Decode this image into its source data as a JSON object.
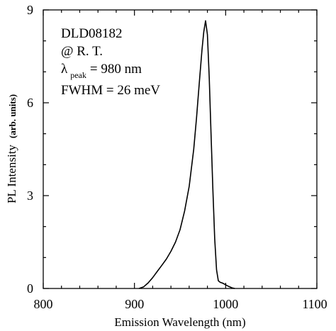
{
  "chart_data": {
    "type": "line",
    "title": "",
    "xlabel": "Emission Wavelength (nm)",
    "ylabel": "PL Intensity",
    "ylabel_units": "(arb. units)",
    "xlim": [
      800,
      1100
    ],
    "ylim": [
      0,
      9
    ],
    "x_ticks": [
      "800",
      "900",
      "1000",
      "1100"
    ],
    "y_ticks": [
      "0",
      "3",
      "6",
      "9"
    ],
    "grid": false,
    "annotations": {
      "sample": "DLD08182",
      "condition": "@ R. T.",
      "lambda_symbol": "λ",
      "peak_sub": "peak",
      "peak_value": "= 980 nm",
      "fwhm": "FWHM = 26 meV"
    },
    "series": [
      {
        "x": [
          905,
          910,
          915,
          920,
          925,
          930,
          935,
          940,
          945,
          950,
          955,
          960,
          965,
          968,
          971,
          974,
          976,
          978,
          980,
          982,
          984,
          986,
          988,
          990,
          992,
          994,
          996,
          998,
          1000,
          1003,
          1007,
          1010
        ],
        "y": [
          0.0,
          0.05,
          0.18,
          0.35,
          0.55,
          0.75,
          0.95,
          1.2,
          1.5,
          1.9,
          2.5,
          3.3,
          4.5,
          5.5,
          6.6,
          7.7,
          8.3,
          8.65,
          8.2,
          6.8,
          5.0,
          3.2,
          1.6,
          0.6,
          0.25,
          0.2,
          0.18,
          0.15,
          0.12,
          0.07,
          0.02,
          0.0
        ]
      }
    ]
  }
}
